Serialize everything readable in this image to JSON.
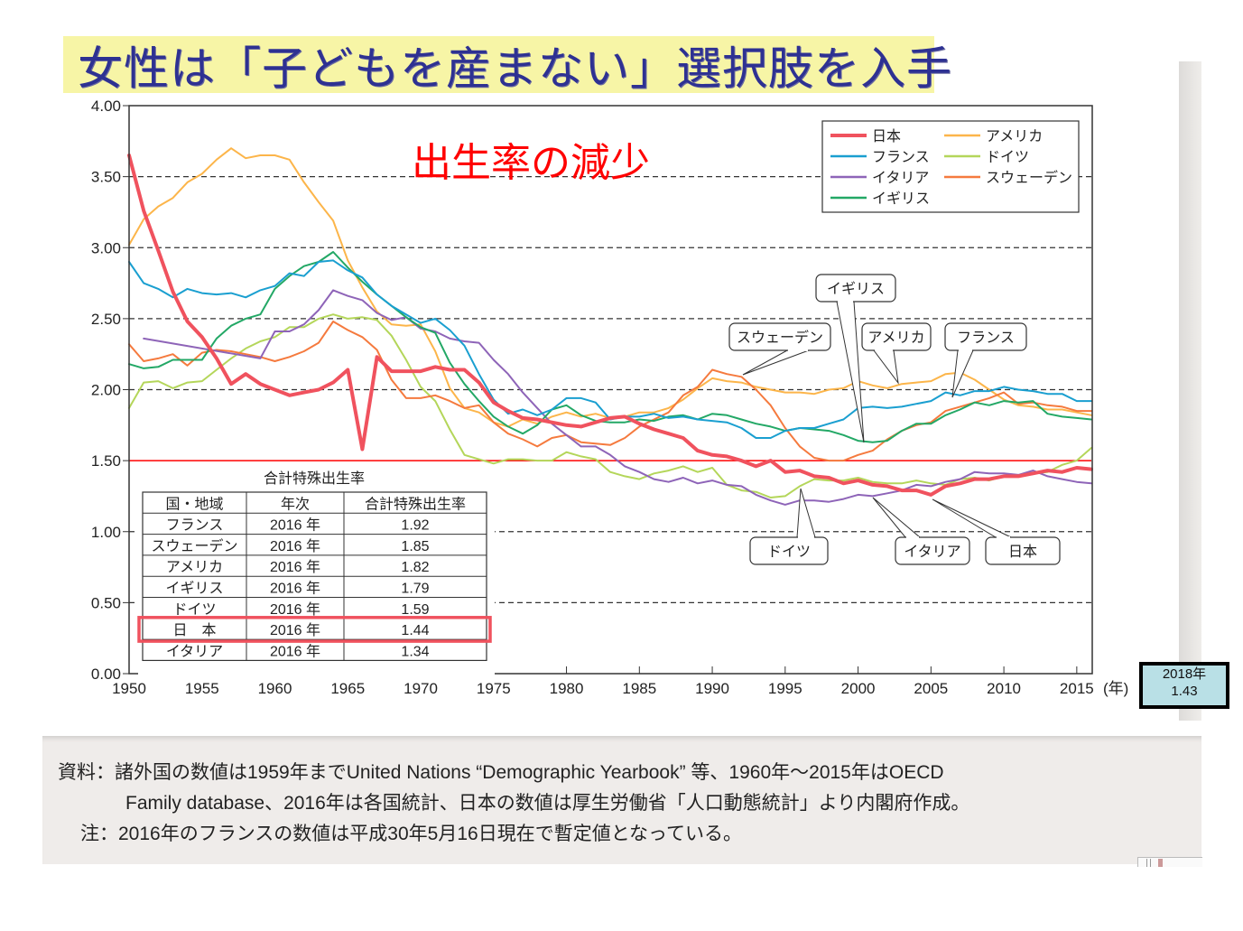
{
  "slide": {
    "title": "女性は「子どもを産まない」選択肢を入手",
    "annotation": "出生率の減少",
    "callout_2018": {
      "year": "2018年",
      "value": "1.43"
    }
  },
  "footer": {
    "line1": "資料：諸外国の数値は1959年までUnited Nations “Demographic Yearbook” 等、1960年～2015年はOECD",
    "line2": "Family database、2016年は各国統計、日本の数値は厚生労働省「人口動態統計」より内閣府作成。",
    "line3": "注：2016年のフランスの数値は平成30年5月16日現在で暫定値となっている。"
  },
  "colors": {
    "japan": "#f0525e",
    "france": "#1a9fd0",
    "italy": "#8e64b8",
    "uk": "#23a866",
    "usa": "#fcb54a",
    "germany": "#b4d65a",
    "sweden": "#f57a3e",
    "threshold": "#ff0000",
    "title": "#2e3192"
  },
  "chart_data": {
    "type": "line",
    "title": "",
    "xlabel": "(年)",
    "ylabel": "",
    "xlim": [
      1950,
      2016
    ],
    "ylim": [
      0,
      4
    ],
    "x_ticks": [
      "1950",
      "1955",
      "1960",
      "1965",
      "1970",
      "1975",
      "1980",
      "1985",
      "1990",
      "1995",
      "2000",
      "2005",
      "2010",
      "2015"
    ],
    "y_ticks": [
      "0.00",
      "0.50",
      "1.00",
      "1.50",
      "2.00",
      "2.50",
      "3.00",
      "3.50",
      "4.00"
    ],
    "grid": "dashed horizontal at 0.5,1.0,2.0,2.5,3.0,3.5",
    "reference_line": 1.5,
    "legend_position": "top-right",
    "series": [
      {
        "key": "japan",
        "name": "日本",
        "width": 4,
        "x": [
          1950,
          1951,
          1952,
          1953,
          1954,
          1955,
          1956,
          1957,
          1958,
          1959,
          1960,
          1961,
          1962,
          1963,
          1964,
          1965,
          1966,
          1967,
          1968,
          1969,
          1970,
          1971,
          1972,
          1973,
          1974,
          1975,
          1976,
          1977,
          1978,
          1979,
          1980,
          1981,
          1982,
          1983,
          1984,
          1985,
          1986,
          1987,
          1988,
          1989,
          1990,
          1991,
          1992,
          1993,
          1994,
          1995,
          1996,
          1997,
          1998,
          1999,
          2000,
          2001,
          2002,
          2003,
          2004,
          2005,
          2006,
          2007,
          2008,
          2009,
          2010,
          2011,
          2012,
          2013,
          2014,
          2015,
          2016
        ],
        "y": [
          3.65,
          3.26,
          2.98,
          2.69,
          2.48,
          2.37,
          2.22,
          2.04,
          2.11,
          2.04,
          2.0,
          1.96,
          1.98,
          2.0,
          2.05,
          2.14,
          1.58,
          2.23,
          2.13,
          2.13,
          2.13,
          2.16,
          2.14,
          2.14,
          2.05,
          1.91,
          1.85,
          1.8,
          1.79,
          1.77,
          1.75,
          1.74,
          1.77,
          1.8,
          1.81,
          1.76,
          1.72,
          1.69,
          1.66,
          1.57,
          1.54,
          1.53,
          1.5,
          1.46,
          1.5,
          1.42,
          1.43,
          1.39,
          1.38,
          1.34,
          1.36,
          1.33,
          1.32,
          1.29,
          1.29,
          1.26,
          1.32,
          1.34,
          1.37,
          1.37,
          1.39,
          1.39,
          1.41,
          1.43,
          1.42,
          1.45,
          1.44
        ]
      },
      {
        "key": "france",
        "name": "フランス",
        "width": 2,
        "x": [
          1950,
          1951,
          1952,
          1953,
          1954,
          1955,
          1956,
          1957,
          1958,
          1959,
          1960,
          1961,
          1962,
          1963,
          1964,
          1965,
          1966,
          1967,
          1968,
          1969,
          1970,
          1971,
          1972,
          1973,
          1974,
          1975,
          1976,
          1977,
          1978,
          1979,
          1980,
          1981,
          1982,
          1983,
          1984,
          1985,
          1986,
          1987,
          1988,
          1989,
          1990,
          1991,
          1992,
          1993,
          1994,
          1995,
          1996,
          1997,
          1998,
          1999,
          2000,
          2001,
          2002,
          2003,
          2004,
          2005,
          2006,
          2007,
          2008,
          2009,
          2010,
          2011,
          2012,
          2013,
          2014,
          2015,
          2016
        ],
        "y": [
          2.9,
          2.75,
          2.71,
          2.65,
          2.71,
          2.68,
          2.67,
          2.68,
          2.65,
          2.7,
          2.73,
          2.82,
          2.8,
          2.9,
          2.91,
          2.84,
          2.79,
          2.67,
          2.59,
          2.53,
          2.47,
          2.5,
          2.42,
          2.31,
          2.11,
          1.93,
          1.83,
          1.86,
          1.82,
          1.86,
          1.94,
          1.94,
          1.91,
          1.79,
          1.81,
          1.81,
          1.83,
          1.8,
          1.81,
          1.79,
          1.78,
          1.77,
          1.73,
          1.66,
          1.66,
          1.71,
          1.73,
          1.73,
          1.76,
          1.79,
          1.87,
          1.88,
          1.87,
          1.88,
          1.9,
          1.92,
          1.98,
          1.96,
          1.99,
          1.99,
          2.02,
          2.0,
          1.99,
          1.97,
          1.97,
          1.92,
          1.92
        ]
      },
      {
        "key": "italy",
        "name": "イタリア",
        "width": 2,
        "x": [
          1951,
          1959,
          1960,
          1961,
          1962,
          1963,
          1964,
          1965,
          1966,
          1967,
          1968,
          1969,
          1970,
          1971,
          1972,
          1973,
          1974,
          1975,
          1976,
          1977,
          1978,
          1979,
          1980,
          1981,
          1982,
          1983,
          1984,
          1985,
          1986,
          1987,
          1988,
          1989,
          1990,
          1991,
          1992,
          1993,
          1994,
          1995,
          1996,
          1997,
          1998,
          1999,
          2000,
          2001,
          2002,
          2003,
          2004,
          2005,
          2006,
          2007,
          2008,
          2009,
          2010,
          2011,
          2012,
          2013,
          2014,
          2015,
          2016
        ],
        "y": [
          2.36,
          2.22,
          2.41,
          2.41,
          2.46,
          2.56,
          2.7,
          2.66,
          2.63,
          2.54,
          2.49,
          2.51,
          2.43,
          2.41,
          2.36,
          2.34,
          2.33,
          2.21,
          2.11,
          1.98,
          1.87,
          1.76,
          1.68,
          1.6,
          1.6,
          1.54,
          1.46,
          1.42,
          1.37,
          1.35,
          1.38,
          1.34,
          1.36,
          1.33,
          1.32,
          1.26,
          1.22,
          1.19,
          1.22,
          1.22,
          1.21,
          1.23,
          1.26,
          1.25,
          1.27,
          1.29,
          1.33,
          1.32,
          1.35,
          1.37,
          1.42,
          1.41,
          1.41,
          1.4,
          1.43,
          1.39,
          1.37,
          1.35,
          1.34
        ]
      },
      {
        "key": "uk",
        "name": "イギリス",
        "width": 2,
        "x": [
          1950,
          1951,
          1952,
          1953,
          1954,
          1955,
          1956,
          1957,
          1958,
          1959,
          1960,
          1961,
          1962,
          1963,
          1964,
          1965,
          1966,
          1967,
          1968,
          1969,
          1970,
          1971,
          1972,
          1973,
          1974,
          1975,
          1976,
          1977,
          1978,
          1979,
          1980,
          1981,
          1982,
          1983,
          1984,
          1985,
          1986,
          1987,
          1988,
          1989,
          1990,
          1991,
          1992,
          1993,
          1994,
          1995,
          1996,
          1997,
          1998,
          1999,
          2000,
          2001,
          2002,
          2003,
          2004,
          2005,
          2006,
          2007,
          2008,
          2009,
          2010,
          2011,
          2012,
          2013,
          2014,
          2015,
          2016
        ],
        "y": [
          2.18,
          2.15,
          2.16,
          2.21,
          2.21,
          2.21,
          2.36,
          2.45,
          2.5,
          2.53,
          2.71,
          2.8,
          2.87,
          2.9,
          2.97,
          2.86,
          2.76,
          2.67,
          2.59,
          2.51,
          2.44,
          2.4,
          2.19,
          2.04,
          1.92,
          1.81,
          1.74,
          1.69,
          1.75,
          1.86,
          1.89,
          1.82,
          1.78,
          1.77,
          1.77,
          1.79,
          1.78,
          1.81,
          1.82,
          1.79,
          1.83,
          1.82,
          1.79,
          1.76,
          1.74,
          1.71,
          1.73,
          1.72,
          1.71,
          1.68,
          1.64,
          1.63,
          1.64,
          1.71,
          1.76,
          1.76,
          1.82,
          1.86,
          1.91,
          1.89,
          1.92,
          1.91,
          1.92,
          1.83,
          1.81,
          1.8,
          1.79
        ]
      },
      {
        "key": "usa",
        "name": "アメリカ",
        "width": 2,
        "x": [
          1950,
          1951,
          1952,
          1953,
          1954,
          1955,
          1956,
          1957,
          1958,
          1959,
          1960,
          1961,
          1962,
          1963,
          1964,
          1965,
          1966,
          1967,
          1968,
          1969,
          1970,
          1971,
          1972,
          1973,
          1974,
          1975,
          1976,
          1977,
          1978,
          1979,
          1980,
          1981,
          1982,
          1983,
          1984,
          1985,
          1986,
          1987,
          1988,
          1989,
          1990,
          1991,
          1992,
          1993,
          1994,
          1995,
          1996,
          1997,
          1998,
          1999,
          2000,
          2001,
          2002,
          2003,
          2004,
          2005,
          2006,
          2007,
          2008,
          2009,
          2010,
          2011,
          2012,
          2013,
          2014,
          2015,
          2016
        ],
        "y": [
          3.02,
          3.2,
          3.29,
          3.35,
          3.46,
          3.52,
          3.62,
          3.7,
          3.63,
          3.65,
          3.65,
          3.62,
          3.46,
          3.32,
          3.19,
          2.91,
          2.72,
          2.55,
          2.46,
          2.45,
          2.46,
          2.27,
          2.01,
          1.87,
          1.84,
          1.77,
          1.74,
          1.79,
          1.76,
          1.81,
          1.84,
          1.81,
          1.83,
          1.8,
          1.81,
          1.84,
          1.84,
          1.87,
          1.93,
          2.01,
          2.08,
          2.06,
          2.05,
          2.02,
          2.0,
          1.98,
          1.98,
          1.97,
          2.0,
          2.01,
          2.06,
          2.03,
          2.01,
          2.04,
          2.05,
          2.06,
          2.11,
          2.12,
          2.07,
          2.0,
          1.93,
          1.89,
          1.88,
          1.86,
          1.86,
          1.84,
          1.82
        ]
      },
      {
        "key": "germany",
        "name": "ドイツ",
        "width": 2,
        "x": [
          1950,
          1951,
          1952,
          1953,
          1954,
          1955,
          1956,
          1957,
          1958,
          1959,
          1960,
          1961,
          1962,
          1963,
          1964,
          1965,
          1966,
          1967,
          1968,
          1969,
          1970,
          1971,
          1972,
          1973,
          1974,
          1975,
          1976,
          1977,
          1978,
          1979,
          1980,
          1981,
          1982,
          1983,
          1984,
          1985,
          1986,
          1987,
          1988,
          1989,
          1990,
          1991,
          1992,
          1993,
          1994,
          1995,
          1996,
          1997,
          1998,
          1999,
          2000,
          2001,
          2002,
          2003,
          2004,
          2005,
          2006,
          2007,
          2008,
          2009,
          2010,
          2011,
          2012,
          2013,
          2014,
          2015,
          2016
        ],
        "y": [
          1.87,
          2.05,
          2.06,
          2.01,
          2.05,
          2.06,
          2.14,
          2.22,
          2.29,
          2.34,
          2.37,
          2.44,
          2.44,
          2.5,
          2.53,
          2.5,
          2.51,
          2.49,
          2.38,
          2.21,
          2.02,
          1.92,
          1.72,
          1.54,
          1.51,
          1.48,
          1.51,
          1.51,
          1.5,
          1.5,
          1.56,
          1.53,
          1.51,
          1.42,
          1.39,
          1.37,
          1.41,
          1.43,
          1.46,
          1.42,
          1.45,
          1.33,
          1.29,
          1.28,
          1.24,
          1.25,
          1.32,
          1.37,
          1.36,
          1.36,
          1.38,
          1.35,
          1.34,
          1.34,
          1.36,
          1.34,
          1.33,
          1.37,
          1.38,
          1.36,
          1.39,
          1.39,
          1.41,
          1.42,
          1.47,
          1.5,
          1.59
        ]
      },
      {
        "key": "sweden",
        "name": "スウェーデン",
        "width": 2,
        "x": [
          1950,
          1951,
          1952,
          1953,
          1954,
          1955,
          1956,
          1957,
          1958,
          1959,
          1960,
          1961,
          1962,
          1963,
          1964,
          1965,
          1966,
          1967,
          1968,
          1969,
          1970,
          1971,
          1972,
          1973,
          1974,
          1975,
          1976,
          1977,
          1978,
          1979,
          1980,
          1981,
          1982,
          1983,
          1984,
          1985,
          1986,
          1987,
          1988,
          1989,
          1990,
          1991,
          1992,
          1993,
          1994,
          1995,
          1996,
          1997,
          1998,
          1999,
          2000,
          2001,
          2002,
          2003,
          2004,
          2005,
          2006,
          2007,
          2008,
          2009,
          2010,
          2011,
          2012,
          2013,
          2014,
          2015,
          2016
        ],
        "y": [
          2.32,
          2.2,
          2.22,
          2.25,
          2.17,
          2.26,
          2.28,
          2.27,
          2.25,
          2.23,
          2.2,
          2.23,
          2.27,
          2.33,
          2.48,
          2.42,
          2.37,
          2.28,
          2.07,
          1.94,
          1.94,
          1.96,
          1.92,
          1.87,
          1.89,
          1.77,
          1.69,
          1.65,
          1.6,
          1.66,
          1.68,
          1.63,
          1.62,
          1.61,
          1.66,
          1.74,
          1.79,
          1.84,
          1.96,
          2.02,
          2.14,
          2.11,
          2.09,
          2.0,
          1.89,
          1.73,
          1.6,
          1.52,
          1.5,
          1.5,
          1.54,
          1.57,
          1.65,
          1.71,
          1.75,
          1.77,
          1.85,
          1.88,
          1.91,
          1.94,
          1.98,
          1.9,
          1.91,
          1.89,
          1.88,
          1.85,
          1.85
        ]
      }
    ],
    "callouts": [
      "スウェーデン",
      "イギリス",
      "アメリカ",
      "フランス",
      "ドイツ",
      "イタリア",
      "日本"
    ],
    "inset_table": {
      "title": "合計特殊出生率",
      "headers": [
        "国・地域",
        "年次",
        "合計特殊出生率"
      ],
      "rows": [
        [
          "フランス",
          "2016 年",
          "1.92"
        ],
        [
          "スウェーデン",
          "2016 年",
          "1.85"
        ],
        [
          "アメリカ",
          "2016 年",
          "1.82"
        ],
        [
          "イギリス",
          "2016 年",
          "1.79"
        ],
        [
          "ドイツ",
          "2016 年",
          "1.59"
        ],
        [
          "日　本",
          "2016 年",
          "1.44"
        ],
        [
          "イタリア",
          "2016 年",
          "1.34"
        ]
      ],
      "highlighted_row": 5
    }
  }
}
